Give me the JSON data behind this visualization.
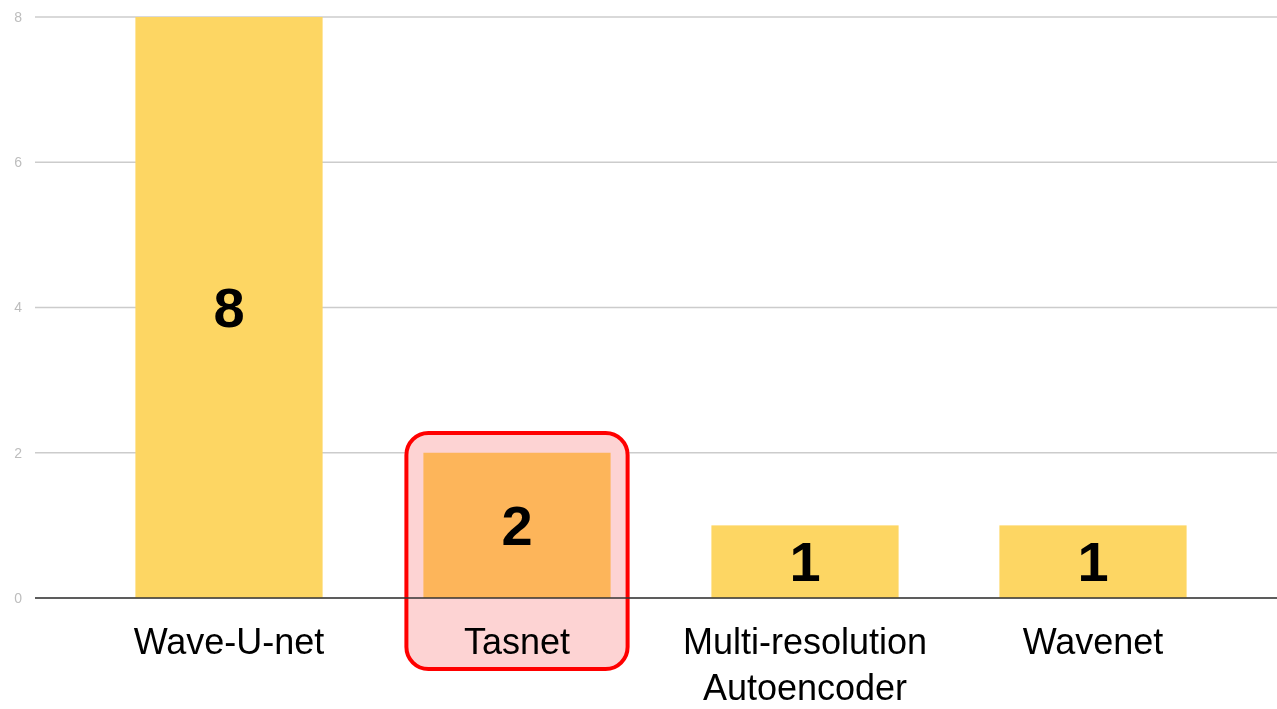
{
  "chart_data": {
    "type": "bar",
    "categories": [
      "Wave-U-net",
      "Tasnet",
      "Multi-resolution Autoencoder",
      "Wavenet"
    ],
    "values": [
      8,
      2,
      1,
      1
    ],
    "colors": [
      "#fdd663",
      "#fdb55a",
      "#fdd663",
      "#fdd663"
    ],
    "ylim": [
      0,
      8
    ],
    "yticks": [
      0,
      2,
      4,
      6,
      8
    ],
    "grid": "y",
    "data_labels": true
  }
}
